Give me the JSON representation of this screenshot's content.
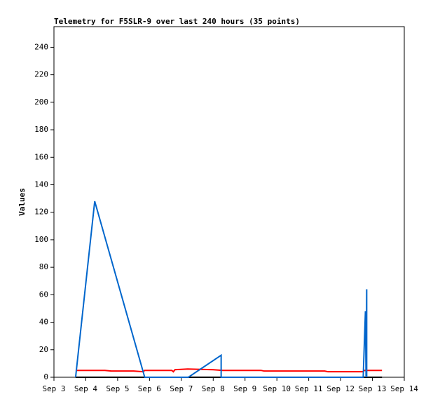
{
  "chart_data": {
    "type": "line",
    "title": "Telemetry for F5SLR-9 over last 240 hours (35 points)",
    "y_label": "Values",
    "xlim": [
      3,
      14
    ],
    "xticks": [
      {
        "value": 3,
        "label": "Sep 3"
      },
      {
        "value": 4,
        "label": "Sep 4"
      },
      {
        "value": 5,
        "label": "Sep 5"
      },
      {
        "value": 6,
        "label": "Sep 6"
      },
      {
        "value": 7,
        "label": "Sep 7"
      },
      {
        "value": 8,
        "label": "Sep 8"
      },
      {
        "value": 9,
        "label": "Sep 9"
      },
      {
        "value": 10,
        "label": "Sep 10"
      },
      {
        "value": 11,
        "label": "Sep 11"
      },
      {
        "value": 12,
        "label": "Sep 12"
      },
      {
        "value": 13,
        "label": "Sep 13"
      },
      {
        "value": 14,
        "label": "Sep 14"
      }
    ],
    "ylim": [
      0,
      255
    ],
    "yticks": [
      0,
      20,
      40,
      60,
      80,
      100,
      120,
      140,
      160,
      180,
      200,
      220,
      240
    ],
    "series": [
      {
        "color": "#000000",
        "x": [
          3.68,
          13.3
        ],
        "values": [
          0,
          0
        ]
      },
      {
        "color": "#ff0000",
        "x": [
          3.68,
          4.6,
          4.8,
          5.5,
          5.8,
          5.85,
          6.7,
          6.75,
          6.8,
          7.2,
          8.0,
          8.3,
          9.5,
          9.6,
          11.5,
          11.6,
          12.7,
          12.75,
          13.3
        ],
        "values": [
          5,
          5,
          4.5,
          4.5,
          4,
          5,
          5,
          4,
          5.5,
          6,
          5.5,
          5,
          5,
          4.5,
          4.5,
          4,
          4,
          5,
          5
        ]
      },
      {
        "color": "#0066cc",
        "x": [
          3.68,
          4.28,
          5.85,
          7.22,
          8.25,
          8.25,
          12.71,
          12.78,
          12.8,
          12.82,
          12.82
        ],
        "values": [
          0,
          128,
          0,
          0,
          16,
          0,
          0,
          48,
          0,
          64,
          0
        ]
      }
    ]
  }
}
